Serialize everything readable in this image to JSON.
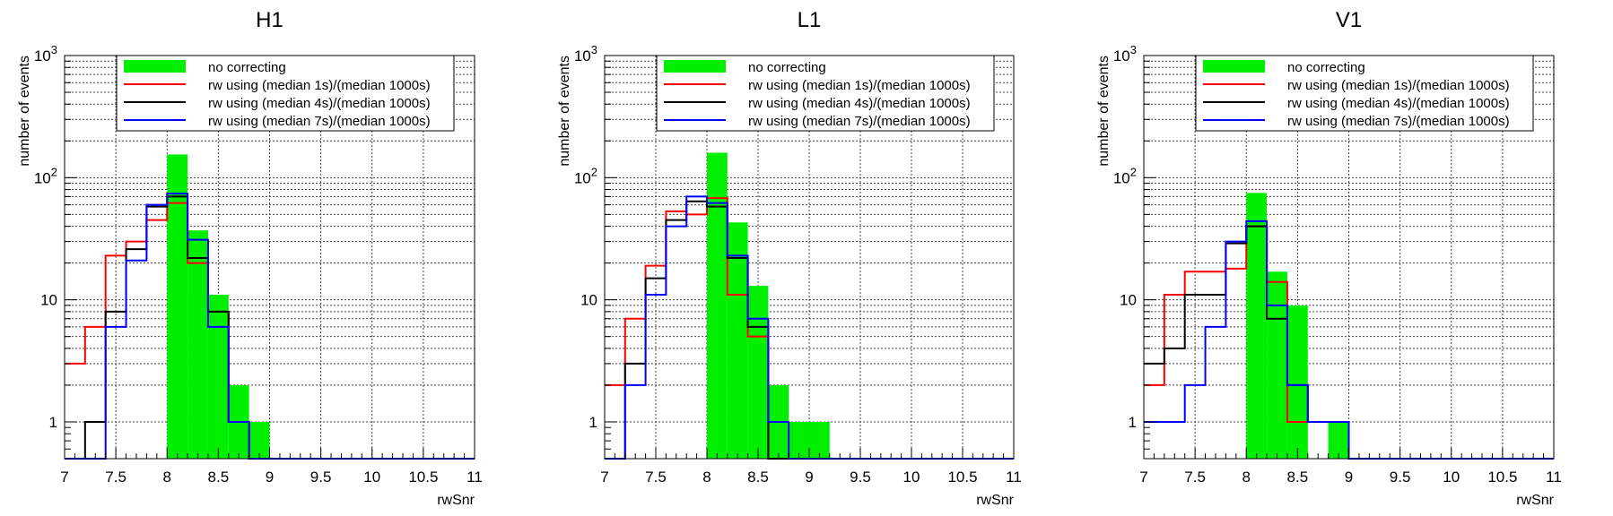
{
  "colors": {
    "no_correcting": "#00ee00",
    "median_1s": "#ff0000",
    "median_4s": "#000000",
    "median_7s": "#0000ff",
    "grid": "#444444"
  },
  "chart_data": [
    {
      "type": "histogram",
      "title": "H1",
      "xlabel": "rwSnr",
      "ylabel": "number of events",
      "xlim": [
        7,
        11
      ],
      "ylim": [
        0.5,
        1000
      ],
      "yscale": "log",
      "grid": true,
      "legend_position": "top",
      "bin_edges": [
        7.0,
        7.2,
        7.4,
        7.6,
        7.8,
        8.0,
        8.2,
        8.4,
        8.6,
        8.8,
        9.0,
        9.2,
        9.4,
        9.6,
        9.8,
        10.0,
        10.2,
        10.4,
        10.6,
        10.8,
        11.0
      ],
      "xticks": [
        "7",
        "7.5",
        "8",
        "8.5",
        "9",
        "9.5",
        "10",
        "10.5",
        "11"
      ],
      "xtick_values": [
        7,
        7.5,
        8,
        8.5,
        9,
        9.5,
        10,
        10.5,
        11
      ],
      "yticks": [
        "1",
        "10",
        "10²",
        "10³"
      ],
      "ytick_values": [
        1,
        10,
        100,
        1000
      ],
      "series": [
        {
          "name": "no correcting",
          "style": "filled",
          "values": [
            0,
            0,
            0,
            0,
            0,
            155,
            37,
            11,
            2,
            1,
            0,
            0,
            0,
            0,
            0,
            0,
            0,
            0,
            0,
            0
          ]
        },
        {
          "name": "rw using (median 1s)/(median 1000s)",
          "style": "step",
          "values": [
            3,
            6,
            23,
            30,
            45,
            62,
            20,
            8,
            1,
            0,
            0,
            0,
            0,
            0,
            0,
            0,
            0,
            0,
            0,
            0
          ]
        },
        {
          "name": "rw using (median 4s)/(median 1000s)",
          "style": "step",
          "values": [
            0,
            1,
            8,
            26,
            58,
            70,
            22,
            8,
            1,
            0,
            0,
            0,
            0,
            0,
            0,
            0,
            0,
            0,
            0,
            0
          ]
        },
        {
          "name": "rw using (median 7s)/(median 1000s)",
          "style": "step",
          "values": [
            0,
            0,
            6,
            21,
            60,
            74,
            31,
            6,
            1,
            0,
            0,
            0,
            0,
            0,
            0,
            0,
            0,
            0,
            0,
            0
          ]
        }
      ]
    },
    {
      "type": "histogram",
      "title": "L1",
      "xlabel": "rwSnr",
      "ylabel": "number of events",
      "xlim": [
        7,
        11
      ],
      "ylim": [
        0.5,
        1000
      ],
      "yscale": "log",
      "grid": true,
      "legend_position": "top",
      "bin_edges": [
        7.0,
        7.2,
        7.4,
        7.6,
        7.8,
        8.0,
        8.2,
        8.4,
        8.6,
        8.8,
        9.0,
        9.2,
        9.4,
        9.6,
        9.8,
        10.0,
        10.2,
        10.4,
        10.6,
        10.8,
        11.0
      ],
      "xticks": [
        "7",
        "7.5",
        "8",
        "8.5",
        "9",
        "9.5",
        "10",
        "10.5",
        "11"
      ],
      "xtick_values": [
        7,
        7.5,
        8,
        8.5,
        9,
        9.5,
        10,
        10.5,
        11
      ],
      "yticks": [
        "1",
        "10",
        "10²",
        "10³"
      ],
      "ytick_values": [
        1,
        10,
        100,
        1000
      ],
      "series": [
        {
          "name": "no correcting",
          "style": "filled",
          "values": [
            0,
            0,
            0,
            0,
            0,
            160,
            43,
            13,
            2,
            1,
            1,
            0,
            0,
            0,
            0,
            0,
            0,
            0,
            0,
            0
          ]
        },
        {
          "name": "rw using (median 1s)/(median 1000s)",
          "style": "step",
          "values": [
            2,
            7,
            19,
            53,
            50,
            68,
            11,
            5,
            0,
            0,
            0,
            0,
            0,
            0,
            0,
            0,
            0,
            0,
            0,
            0
          ]
        },
        {
          "name": "rw using (median 4s)/(median 1000s)",
          "style": "step",
          "values": [
            0,
            3,
            15,
            45,
            64,
            58,
            22,
            6,
            0,
            0,
            0,
            0,
            0,
            0,
            0,
            0,
            0,
            0,
            0,
            0
          ]
        },
        {
          "name": "rw using (median 7s)/(median 1000s)",
          "style": "step",
          "values": [
            0,
            2,
            11,
            40,
            70,
            62,
            23,
            7,
            1,
            0,
            0,
            0,
            0,
            0,
            0,
            0,
            0,
            0,
            0,
            0
          ]
        }
      ]
    },
    {
      "type": "histogram",
      "title": "V1",
      "xlabel": "rwSnr",
      "ylabel": "number of events",
      "xlim": [
        7,
        11
      ],
      "ylim": [
        0.5,
        1000
      ],
      "yscale": "log",
      "grid": true,
      "legend_position": "top",
      "bin_edges": [
        7.0,
        7.2,
        7.4,
        7.6,
        7.8,
        8.0,
        8.2,
        8.4,
        8.6,
        8.8,
        9.0,
        9.2,
        9.4,
        9.6,
        9.8,
        10.0,
        10.2,
        10.4,
        10.6,
        10.8,
        11.0
      ],
      "xticks": [
        "7",
        "7.5",
        "8",
        "8.5",
        "9",
        "9.5",
        "10",
        "10.5",
        "11"
      ],
      "xtick_values": [
        7,
        7.5,
        8,
        8.5,
        9,
        9.5,
        10,
        10.5,
        11
      ],
      "yticks": [
        "1",
        "10",
        "10²",
        "10³"
      ],
      "ytick_values": [
        1,
        10,
        100,
        1000
      ],
      "series": [
        {
          "name": "no correcting",
          "style": "filled",
          "values": [
            0,
            0,
            0,
            0,
            0,
            75,
            17,
            9,
            0,
            1,
            0,
            0,
            0,
            0,
            0,
            0,
            0,
            0,
            0,
            0
          ]
        },
        {
          "name": "rw using (median 1s)/(median 1000s)",
          "style": "step",
          "values": [
            2,
            11,
            17,
            17,
            18,
            40,
            14,
            1,
            1,
            1,
            0,
            0,
            0,
            0,
            0,
            0,
            0,
            0,
            0,
            0
          ]
        },
        {
          "name": "rw using (median 4s)/(median 1000s)",
          "style": "step",
          "values": [
            3,
            4,
            11,
            11,
            29,
            40,
            7,
            2,
            1,
            1,
            0,
            0,
            0,
            0,
            0,
            0,
            0,
            0,
            0,
            0
          ]
        },
        {
          "name": "rw using (median 7s)/(median 1000s)",
          "style": "step",
          "values": [
            1,
            1,
            2,
            6,
            30,
            44,
            9,
            2,
            1,
            1,
            0,
            0,
            0,
            0,
            0,
            0,
            0,
            0,
            0,
            0
          ]
        }
      ]
    }
  ]
}
